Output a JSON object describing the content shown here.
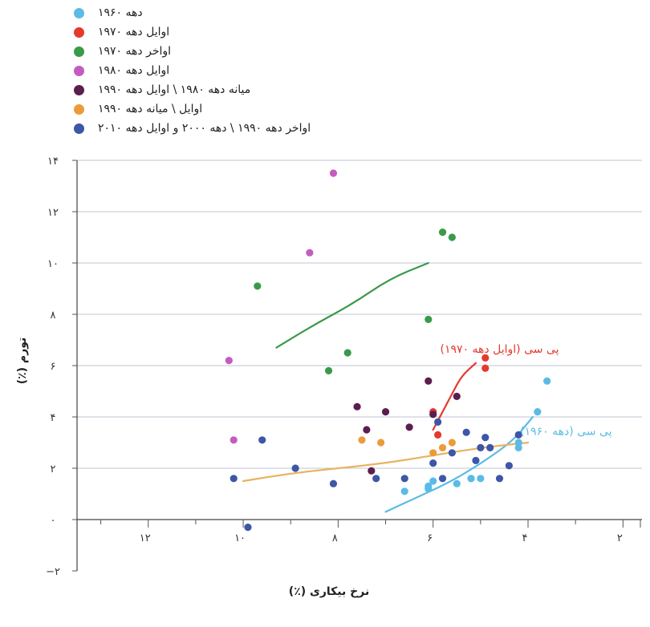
{
  "chart_data": {
    "type": "scatter",
    "xlabel": "نرخ بیکاری (٪)",
    "ylabel": "تورم (٪)",
    "xlim": [
      13.5,
      1.6
    ],
    "ylim": [
      -2,
      14
    ],
    "xaxis_reversed": true,
    "grid": true,
    "legend_position": "top-left",
    "x_tick_labels": [
      {
        "v": 12,
        "label": "۱۲"
      },
      {
        "v": 10,
        "label": "۱۰"
      },
      {
        "v": 8,
        "label": "۸"
      },
      {
        "v": 6,
        "label": "۶"
      },
      {
        "v": 4,
        "label": "۴"
      },
      {
        "v": 2,
        "label": "۲"
      }
    ],
    "y_tick_labels": [
      {
        "v": 14,
        "label": "۱۴"
      },
      {
        "v": 12,
        "label": "۱۲"
      },
      {
        "v": 10,
        "label": "۱۰"
      },
      {
        "v": 8,
        "label": "۸"
      },
      {
        "v": 6,
        "label": "۶"
      },
      {
        "v": 4,
        "label": "۴"
      },
      {
        "v": 2,
        "label": "۲"
      },
      {
        "v": 0,
        "label": "۰"
      },
      {
        "v": -2,
        "label": "−۲"
      }
    ],
    "series": [
      {
        "name": "دهه ۱۹۶۰",
        "color": "#5bbbe6",
        "points": [
          [
            6.6,
            1.1
          ],
          [
            6.1,
            1.2
          ],
          [
            6.1,
            1.3
          ],
          [
            6.0,
            1.5
          ],
          [
            5.5,
            1.4
          ],
          [
            5.2,
            1.6
          ],
          [
            5.2,
            1.6
          ],
          [
            5.0,
            1.6
          ],
          [
            4.2,
            2.8
          ],
          [
            4.2,
            3.0
          ],
          [
            3.8,
            4.2
          ],
          [
            3.6,
            5.4
          ]
        ]
      },
      {
        "name": "اوایل دهه ۱۹۷۰",
        "color": "#e43a2d",
        "points": [
          [
            6.0,
            4.2
          ],
          [
            5.9,
            3.3
          ],
          [
            4.9,
            5.9
          ],
          [
            4.9,
            6.3
          ]
        ]
      },
      {
        "name": "اواخر دهه ۱۹۷۰",
        "color": "#3a9a4a",
        "points": [
          [
            9.7,
            9.1
          ],
          [
            8.2,
            5.8
          ],
          [
            7.8,
            6.5
          ],
          [
            6.1,
            7.8
          ],
          [
            5.8,
            11.2
          ],
          [
            5.6,
            11.0
          ]
        ]
      },
      {
        "name": "اوایل دهه ۱۹۸۰",
        "color": "#c45cbf",
        "points": [
          [
            10.3,
            6.2
          ],
          [
            10.2,
            3.1
          ],
          [
            8.6,
            10.4
          ],
          [
            8.1,
            13.5
          ]
        ]
      },
      {
        "name": "میانه دهه ۱۹۸۰ \\ اوایل دهه ۱۹۹۰",
        "color": "#5c1e4e",
        "points": [
          [
            7.6,
            4.4
          ],
          [
            7.4,
            3.5
          ],
          [
            7.3,
            1.9
          ],
          [
            7.0,
            4.2
          ],
          [
            6.5,
            3.6
          ],
          [
            6.1,
            5.4
          ],
          [
            6.0,
            4.1
          ],
          [
            5.5,
            4.8
          ]
        ]
      },
      {
        "name": "اوایل \\ میانه دهه ۱۹۹۰",
        "color": "#ec9b3a",
        "points": [
          [
            7.5,
            3.1
          ],
          [
            7.1,
            3.0
          ],
          [
            6.0,
            2.6
          ],
          [
            5.8,
            2.8
          ],
          [
            5.6,
            3.0
          ]
        ]
      },
      {
        "name": "اواخر دهه ۱۹۹۰ \\ دهه ۲۰۰۰ و اوایل دهه ۲۰۱۰",
        "color": "#3d56a6",
        "points": [
          [
            10.2,
            1.6
          ],
          [
            9.9,
            -0.3
          ],
          [
            9.6,
            3.1
          ],
          [
            8.9,
            2.0
          ],
          [
            8.1,
            1.4
          ],
          [
            7.2,
            1.6
          ],
          [
            6.6,
            1.6
          ],
          [
            6.0,
            2.2
          ],
          [
            5.9,
            3.8
          ],
          [
            5.8,
            1.6
          ],
          [
            5.6,
            2.6
          ],
          [
            5.3,
            3.4
          ],
          [
            5.1,
            2.3
          ],
          [
            5.0,
            2.8
          ],
          [
            4.8,
            2.8
          ],
          [
            4.9,
            3.2
          ],
          [
            4.6,
            1.6
          ],
          [
            4.4,
            2.1
          ],
          [
            4.2,
            3.3
          ]
        ]
      }
    ],
    "curves": [
      {
        "series": "اواخر دهه ۱۹۷۰",
        "color": "#3a9a4a",
        "points": [
          [
            9.3,
            6.7
          ],
          [
            8.5,
            7.6
          ],
          [
            7.7,
            8.4
          ],
          [
            6.9,
            9.4
          ],
          [
            6.1,
            10.0
          ]
        ]
      },
      {
        "series": "اوایل دهه ۱۹۷۰",
        "color": "#e43a2d",
        "points": [
          [
            6.0,
            3.5
          ],
          [
            5.8,
            4.2
          ],
          [
            5.6,
            4.9
          ],
          [
            5.4,
            5.6
          ],
          [
            5.1,
            6.1
          ]
        ]
      },
      {
        "series": "دهه ۱۹۶۰",
        "color": "#5bbbe6",
        "points": [
          [
            7.0,
            0.3
          ],
          [
            6.3,
            0.9
          ],
          [
            5.6,
            1.5
          ],
          [
            4.9,
            2.3
          ],
          [
            4.3,
            3.1
          ],
          [
            3.9,
            4.0
          ]
        ]
      },
      {
        "series": "اوایل \\ میانه دهه ۱۹۹۰",
        "color": "#e8b25e",
        "points": [
          [
            10.0,
            1.5
          ],
          [
            9.0,
            1.8
          ],
          [
            8.0,
            2.0
          ],
          [
            7.0,
            2.2
          ],
          [
            6.0,
            2.5
          ],
          [
            5.0,
            2.8
          ],
          [
            4.0,
            3.0
          ]
        ]
      }
    ],
    "annotations": [
      {
        "text": "پی سی (اوایل دهه ۱۹۷۰)",
        "color": "#e43a2d",
        "x": 4.6,
        "y": 6.5
      },
      {
        "text": "پی سی (دهه ۱۹۶۰)",
        "color": "#5bbbe6",
        "x": 3.2,
        "y": 3.3
      }
    ]
  }
}
